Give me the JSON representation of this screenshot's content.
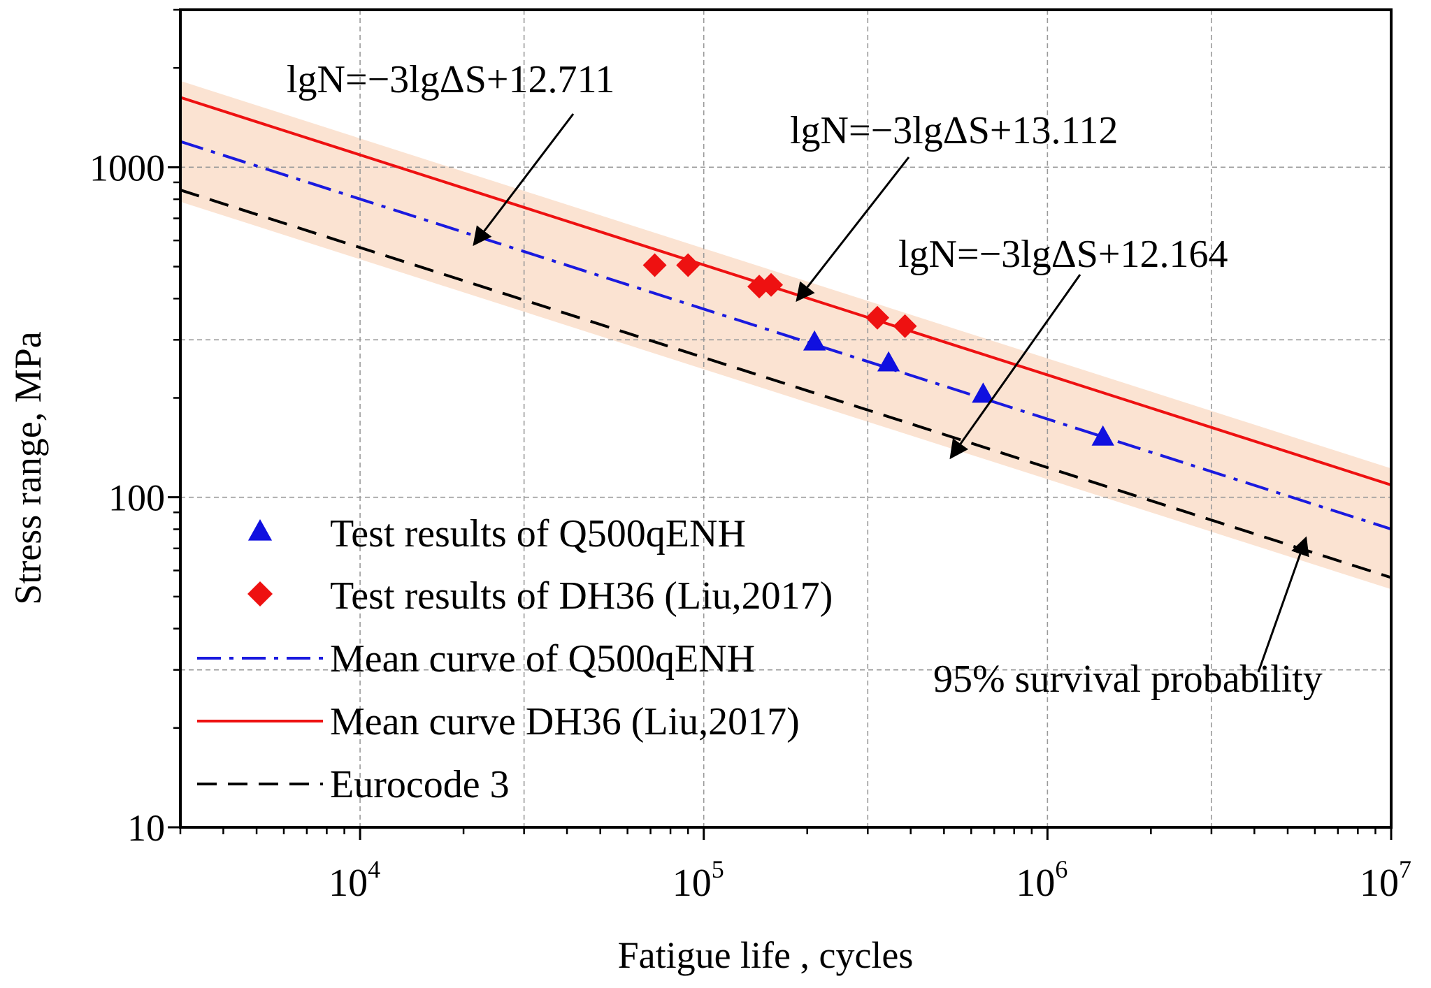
{
  "chart_data": {
    "type": "scatter",
    "title": "",
    "xlabel": "Fatigue life , cycles",
    "ylabel": "Stress range, MPa",
    "xscale": "log",
    "yscale": "log",
    "xlim": [
      3000,
      10000000
    ],
    "ylim": [
      10,
      3000
    ],
    "grid": true,
    "legend_position": "bottom-left",
    "x_ticks": [
      {
        "value": 10000,
        "base": "10",
        "exp": "4"
      },
      {
        "value": 100000,
        "base": "10",
        "exp": "5"
      },
      {
        "value": 1000000,
        "base": "10",
        "exp": "6"
      },
      {
        "value": 10000000,
        "base": "10",
        "exp": "7"
      }
    ],
    "y_ticks": [
      {
        "value": 10,
        "label": "10"
      },
      {
        "value": 100,
        "label": "100"
      },
      {
        "value": 1000,
        "label": "1000"
      }
    ],
    "band": {
      "name": "shaded band",
      "color": "#fbe3d2",
      "lg_intercept_upper": 13.262,
      "lg_intercept_lower": 12.164,
      "slope": 3
    },
    "scatter_series": [
      {
        "name": "Test results of Q500qENH",
        "marker": "triangle",
        "color": "#1010e0",
        "x": [
          210000,
          345000,
          650000,
          1450000
        ],
        "y": [
          295,
          255,
          205,
          152
        ]
      },
      {
        "name": "Test results of DH36 (Liu,2017)",
        "marker": "diamond",
        "color": "#ee1111",
        "x": [
          72000,
          90000,
          145000,
          157000,
          320000,
          385000
        ],
        "y": [
          505,
          505,
          435,
          440,
          350,
          330
        ]
      }
    ],
    "line_series": [
      {
        "name": "Mean curve of Q500qENH",
        "style": "dashdot",
        "color": "#1a1adf",
        "lg_intercept": 12.711,
        "slope": 3
      },
      {
        "name": "Mean curve DH36 (Liu,2017)",
        "style": "solid",
        "color": "#ee1111",
        "lg_intercept": 13.112,
        "slope": 3
      },
      {
        "name": "Eurocode 3",
        "style": "dashed",
        "color": "#000000",
        "lg_intercept": 12.27,
        "slope": 3
      }
    ],
    "annotations": [
      {
        "text": "lgN=−3lgΔS+12.711",
        "points_to": "Mean curve of Q500qENH"
      },
      {
        "text": "lgN=−3lgΔS+13.112",
        "points_to": "Mean curve DH36 (Liu,2017)"
      },
      {
        "text": "lgN=−3lgΔS+12.164",
        "points_to": "95% survival probability band lower edge"
      },
      {
        "text": "95% survival probability",
        "points_to": "shaded band"
      }
    ]
  },
  "legend": {
    "items": [
      {
        "label": "Test results of Q500qENH",
        "kind": "triangle",
        "color": "#1010e0"
      },
      {
        "label": "Test results of DH36 (Liu,2017)",
        "kind": "diamond",
        "color": "#ee1111"
      },
      {
        "label": "Mean curve of Q500qENH",
        "kind": "dashdot",
        "color": "#1a1adf"
      },
      {
        "label": "Mean curve DH36 (Liu,2017)",
        "kind": "solid",
        "color": "#ee1111"
      },
      {
        "label": "Eurocode 3",
        "kind": "dashed",
        "color": "#000000"
      }
    ]
  }
}
